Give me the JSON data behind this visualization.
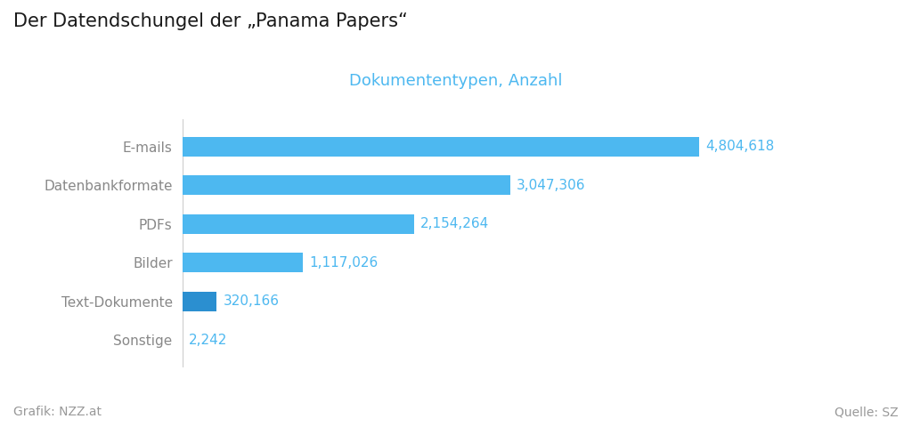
{
  "title": "Der Datendschungel der „Panama Papers“",
  "subtitle": "Dokumententypen, Anzahl",
  "categories": [
    "Sonstige",
    "Text-Dokumente",
    "Bilder",
    "PDFs",
    "Datenbankformate",
    "E-mails"
  ],
  "values": [
    2242,
    320166,
    1117026,
    2154264,
    3047306,
    4804618
  ],
  "labels": [
    "2,242",
    "320,166",
    "1,117,026",
    "2,154,264",
    "3,047,306",
    "4,804,618"
  ],
  "bar_color": "#4DB8F0",
  "bar_color_small": "#2B8FD0",
  "title_color": "#1a1a1a",
  "subtitle_color": "#4DB8F0",
  "label_color": "#4DB8F0",
  "category_color": "#888888",
  "footer_color": "#999999",
  "background_color": "#ffffff",
  "grafik_text": "Grafik: NZZ.at",
  "quelle_text": "Quelle: SZ",
  "title_fontsize": 15,
  "subtitle_fontsize": 13,
  "label_fontsize": 11,
  "category_fontsize": 11,
  "footer_fontsize": 10,
  "xlim": [
    0,
    5600000
  ]
}
